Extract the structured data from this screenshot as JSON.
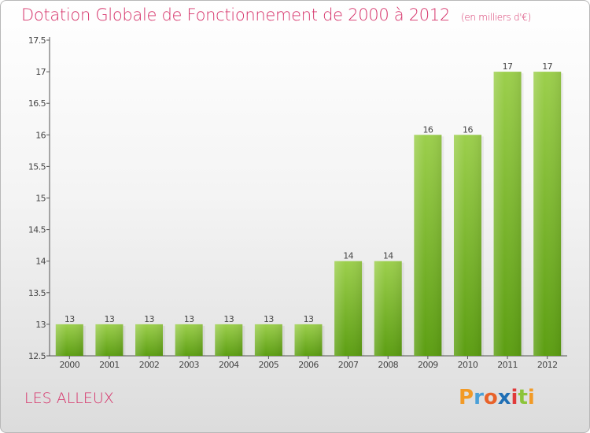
{
  "header": {
    "title": "Dotation Globale de Fonctionnement de 2000 à 2012",
    "unit": "(en milliers d'€)"
  },
  "footer": {
    "commune": "LES ALLEUX",
    "logo_text": "Proxiti",
    "logo_colors": [
      "#f29a26",
      "#4aa0d8",
      "#e8622a",
      "#1f6fb5",
      "#e03a3a",
      "#8cc43a",
      "#f29a26"
    ]
  },
  "chart_data": {
    "type": "bar",
    "title": "Dotation Globale de Fonctionnement de 2000 à 2012",
    "xlabel": "",
    "ylabel": "",
    "categories": [
      "2000",
      "2001",
      "2002",
      "2003",
      "2004",
      "2005",
      "2006",
      "2007",
      "2008",
      "2009",
      "2010",
      "2011",
      "2012"
    ],
    "values": [
      13,
      13,
      13,
      13,
      13,
      13,
      13,
      14,
      14,
      16,
      16,
      17,
      17
    ],
    "value_labels": [
      "13",
      "13",
      "13",
      "13",
      "13",
      "13",
      "13",
      "14",
      "14",
      "16",
      "16",
      "17",
      "17"
    ],
    "ylim": [
      12.5,
      17.5
    ],
    "yticks": [
      12.5,
      13,
      13.5,
      14,
      14.5,
      15,
      15.5,
      16,
      16.5,
      17,
      17.5
    ],
    "ytick_labels": [
      "12.5",
      "13",
      "13.5",
      "14",
      "14.5",
      "15",
      "15.5",
      "16",
      "16.5",
      "17",
      "17.5"
    ],
    "grid": false,
    "bar_color_top": "#9ccf4c",
    "bar_color_bottom": "#5c9e12"
  }
}
